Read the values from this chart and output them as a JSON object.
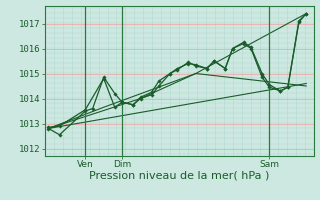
{
  "background_color": "#cce8e0",
  "grid_color_h": "#f5a0a0",
  "grid_color_v": "#b0d8d0",
  "line_color": "#1a5c2a",
  "marker_color": "#1a5c2a",
  "axis_color": "#1a5c2a",
  "border_color": "#2a7a40",
  "ylabel_ticks": [
    1012,
    1013,
    1014,
    1015,
    1016,
    1017
  ],
  "ylim": [
    1011.7,
    1017.7
  ],
  "xlabel": "Pression niveau de la mer( hPa )",
  "xlabel_fontsize": 8,
  "tick_fontsize": 6.5,
  "n_xgrid": 30,
  "series_with_markers": [
    {
      "x": [
        0.0,
        0.15,
        0.5,
        0.6,
        0.75,
        0.9,
        1.0,
        1.15,
        1.25,
        1.4,
        1.5,
        1.65,
        1.75,
        1.9,
        2.0,
        2.15,
        2.25,
        2.4,
        2.5,
        2.65,
        2.75,
        2.9,
        3.0,
        3.15,
        3.25,
        3.4,
        3.5
      ],
      "y": [
        1012.8,
        1012.55,
        1013.5,
        1013.6,
        1014.85,
        1014.2,
        1013.85,
        1013.75,
        1014.05,
        1014.25,
        1014.7,
        1015.0,
        1015.15,
        1015.45,
        1015.3,
        1015.2,
        1015.5,
        1015.2,
        1016.0,
        1016.25,
        1016.05,
        1015.0,
        1014.55,
        1014.3,
        1014.45,
        1017.1,
        1017.4
      ]
    },
    {
      "x": [
        0.0,
        0.15,
        0.5,
        0.75,
        0.9,
        1.0,
        1.15,
        1.25,
        1.4,
        1.5,
        1.65,
        1.75,
        1.9,
        2.0,
        2.15,
        2.25,
        2.4,
        2.5,
        2.65,
        2.75,
        2.9,
        3.0,
        3.15,
        3.25,
        3.4,
        3.5
      ],
      "y": [
        1012.85,
        1012.9,
        1013.55,
        1014.8,
        1013.65,
        1013.85,
        1013.75,
        1014.0,
        1014.15,
        1014.5,
        1015.0,
        1015.2,
        1015.4,
        1015.35,
        1015.2,
        1015.5,
        1015.2,
        1016.0,
        1016.2,
        1016.0,
        1014.85,
        1014.45,
        1014.3,
        1014.45,
        1017.05,
        1017.4
      ]
    }
  ],
  "series_lines": [
    {
      "x": [
        0.0,
        0.75,
        2.0,
        3.5
      ],
      "y": [
        1012.8,
        1013.65,
        1015.0,
        1017.4
      ]
    },
    {
      "x": [
        0.0,
        1.25,
        2.0,
        3.5
      ],
      "y": [
        1012.8,
        1014.0,
        1015.0,
        1014.5
      ]
    },
    {
      "x": [
        0.0,
        3.5
      ],
      "y": [
        1012.8,
        1014.6
      ]
    }
  ],
  "vlines_x": [
    0.5,
    1.0,
    3.0
  ],
  "xtick_positions": [
    0.5,
    1.0,
    3.0
  ],
  "xtick_labels": [
    "Ven",
    "Dim",
    "Sam"
  ],
  "xlim": [
    -0.05,
    3.6
  ]
}
